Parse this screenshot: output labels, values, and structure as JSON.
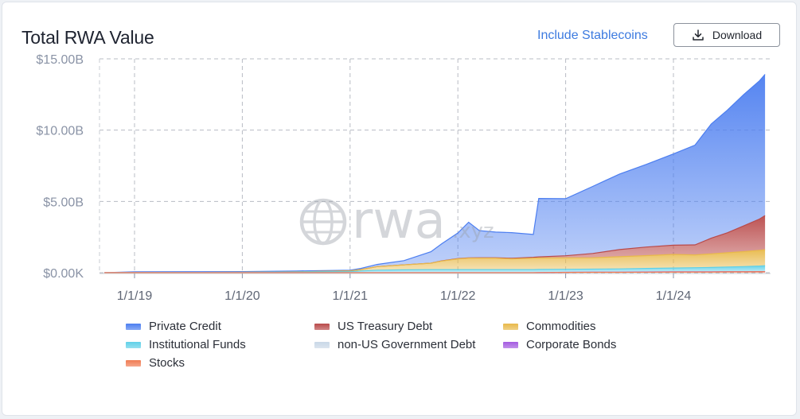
{
  "header": {
    "title": "Total RWA Value",
    "stablecoins_label": "Include Stablecoins",
    "download_label": "Download",
    "download_icon": "download-icon"
  },
  "watermark": {
    "text": "rwa",
    "suffix": ".xyz",
    "icon": "globe-icon"
  },
  "chart_data": {
    "type": "area",
    "stacked": true,
    "title": "Total RWA Value",
    "xlabel": "",
    "ylabel": "",
    "x_ticks": [
      "1/1/19",
      "1/1/20",
      "1/1/21",
      "1/1/22",
      "1/1/23",
      "1/1/24"
    ],
    "x_tick_years": [
      2019,
      2020,
      2021,
      2022,
      2023,
      2024
    ],
    "y_ticks": [
      "$0.00K",
      "$5.00B",
      "$10.00B",
      "$15.00B"
    ],
    "y_tick_values": [
      0,
      5,
      10,
      15
    ],
    "ylim": [
      0,
      15
    ],
    "xlim": [
      2018.72,
      2024.85
    ],
    "unit": "billion USD",
    "grid": true,
    "legend_position": "bottom",
    "x": [
      2018.72,
      2019.0,
      2019.5,
      2020.0,
      2020.5,
      2021.0,
      2021.1,
      2021.25,
      2021.5,
      2021.75,
      2021.85,
      2022.0,
      2022.1,
      2022.2,
      2022.35,
      2022.5,
      2022.7,
      2022.75,
      2023.0,
      2023.25,
      2023.5,
      2023.75,
      2024.0,
      2024.2,
      2024.35,
      2024.5,
      2024.65,
      2024.8,
      2024.85
    ],
    "series": [
      {
        "name": "Stocks",
        "color": "#f07b52",
        "values": [
          0,
          0,
          0,
          0,
          0,
          0,
          0,
          0,
          0,
          0,
          0,
          0,
          0,
          0,
          0,
          0,
          0,
          0.01,
          0.02,
          0.03,
          0.03,
          0.04,
          0.05,
          0.05,
          0.05,
          0.06,
          0.06,
          0.07,
          0.07
        ]
      },
      {
        "name": "Corporate Bonds",
        "color": "#a45be0",
        "values": [
          0,
          0,
          0,
          0,
          0,
          0,
          0,
          0,
          0,
          0,
          0,
          0,
          0,
          0,
          0,
          0,
          0,
          0,
          0.01,
          0.01,
          0.01,
          0.01,
          0.01,
          0.01,
          0.01,
          0.01,
          0.01,
          0.01,
          0.01
        ]
      },
      {
        "name": "non-US Government Debt",
        "color": "#c9d7e6",
        "values": [
          0,
          0,
          0,
          0,
          0,
          0,
          0,
          0,
          0,
          0,
          0,
          0,
          0,
          0,
          0,
          0,
          0,
          0,
          0.01,
          0.01,
          0.01,
          0.01,
          0.01,
          0.01,
          0.01,
          0.01,
          0.01,
          0.01,
          0.01
        ]
      },
      {
        "name": "Institutional Funds",
        "color": "#5fd0e8",
        "values": [
          0,
          0.01,
          0.02,
          0.03,
          0.05,
          0.08,
          0.12,
          0.18,
          0.2,
          0.22,
          0.22,
          0.22,
          0.22,
          0.22,
          0.22,
          0.22,
          0.22,
          0.22,
          0.2,
          0.2,
          0.22,
          0.24,
          0.26,
          0.28,
          0.3,
          0.32,
          0.35,
          0.38,
          0.4
        ]
      },
      {
        "name": "Commodities",
        "color": "#e8b94a",
        "values": [
          0,
          0,
          0,
          0,
          0.01,
          0.05,
          0.1,
          0.25,
          0.35,
          0.45,
          0.6,
          0.75,
          0.8,
          0.8,
          0.8,
          0.75,
          0.8,
          0.8,
          0.8,
          0.8,
          0.85,
          0.9,
          0.95,
          0.9,
          0.95,
          1.0,
          1.05,
          1.1,
          1.12
        ]
      },
      {
        "name": "US Treasury Debt",
        "color": "#b94a4a",
        "values": [
          0,
          0,
          0,
          0,
          0,
          0,
          0,
          0,
          0,
          0,
          0.01,
          0.02,
          0.02,
          0.03,
          0.03,
          0.04,
          0.06,
          0.08,
          0.15,
          0.3,
          0.5,
          0.6,
          0.65,
          0.7,
          1.1,
          1.4,
          1.8,
          2.2,
          2.4
        ]
      },
      {
        "name": "Private Credit",
        "color": "#4c7ef0",
        "values": [
          0,
          0.05,
          0.05,
          0.05,
          0.06,
          0.05,
          0.08,
          0.15,
          0.3,
          0.8,
          1.2,
          1.8,
          2.5,
          1.9,
          1.8,
          1.8,
          1.6,
          4.1,
          4.0,
          4.7,
          5.3,
          5.8,
          6.4,
          7.0,
          8.0,
          8.6,
          9.2,
          9.7,
          9.9
        ]
      }
    ]
  },
  "legend": [
    {
      "label": "Private Credit",
      "color": "#4c7ef0"
    },
    {
      "label": "US Treasury Debt",
      "color": "#b94a4a"
    },
    {
      "label": "Commodities",
      "color": "#e8b94a"
    },
    {
      "label": "Institutional Funds",
      "color": "#5fd0e8"
    },
    {
      "label": "non-US Government Debt",
      "color": "#c9d7e6"
    },
    {
      "label": "Corporate Bonds",
      "color": "#a45be0"
    },
    {
      "label": "Stocks",
      "color": "#f07b52"
    }
  ]
}
